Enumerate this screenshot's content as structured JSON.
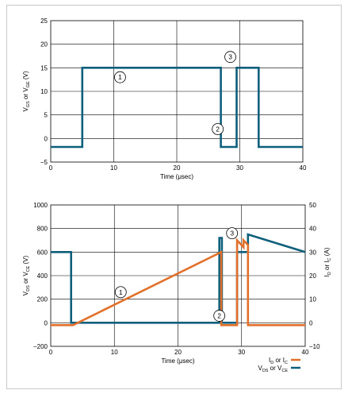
{
  "chart_data": [
    {
      "type": "line",
      "xlabel": "Time (μsec)",
      "ylabel": "V_GS or V_GE (V)",
      "ylabel_main": "V",
      "ylabel_sub1": "GS",
      "ylabel_mid": " or V",
      "ylabel_sub2": "GE",
      "ylabel_end": " (V)",
      "xlim": [
        0,
        40
      ],
      "ylim": [
        -5,
        25
      ],
      "xticks": [
        "0",
        "10",
        "20",
        "30",
        "40"
      ],
      "yticks": [
        "−5",
        "0",
        "5",
        "10",
        "15",
        "20",
        "25"
      ],
      "grid": true,
      "series": [
        {
          "color": "#0e5f7c",
          "x": [
            0,
            3.5,
            3.5,
            5,
            5,
            27,
            27,
            29.5,
            29.5,
            30,
            30,
            33,
            33,
            35,
            35,
            40
          ],
          "y": [
            -1.8,
            -1.8,
            -1.8,
            -1.8,
            15,
            15,
            -1.8,
            -1.8,
            15,
            15,
            15,
            15,
            -1.8,
            -1.8,
            -1.8,
            -1.8
          ]
        }
      ],
      "annotations": [
        {
          "text": "1",
          "x": 11,
          "y": 13
        },
        {
          "text": "2",
          "x": 26.5,
          "y": 2
        },
        {
          "text": "3",
          "x": 28.5,
          "y": 17.3
        }
      ]
    },
    {
      "type": "line",
      "xlabel": "Time (μsec)",
      "ylabel": "V_DS or V_CE (V)",
      "ylabel_main": "V",
      "ylabel_sub1": "DS",
      "ylabel_mid": " or V",
      "ylabel_sub2": "CE",
      "ylabel_end": " (V)",
      "y2label": "I_D or I_C (A)",
      "y2label_main": "I",
      "y2label_sub1": "D",
      "y2label_mid": " or I",
      "y2label_sub2": "C",
      "y2label_end": " (A)",
      "xlim": [
        0,
        40
      ],
      "ylim": [
        -200,
        1000
      ],
      "y2lim": [
        -10,
        50
      ],
      "xticks": [
        "0",
        "10",
        "20",
        "30",
        "40"
      ],
      "yticks": [
        "−200",
        "0",
        "200",
        "400",
        "600",
        "800",
        "1000"
      ],
      "y2ticks": [
        "−10",
        "0",
        "10",
        "20",
        "30",
        "40",
        "50"
      ],
      "grid": true,
      "legend": {
        "position": "bottom-right",
        "current_label_main": "I",
        "current_label_sub1": "D",
        "current_label_mid": " or I",
        "current_label_sub2": "C",
        "voltage_label_main": "V",
        "voltage_label_sub1": "DS",
        "voltage_label_mid": " or V",
        "voltage_label_sub2": "CE"
      },
      "series": [
        {
          "name": "V_DS or V_CE",
          "color": "#0e5f7c",
          "axis": "left",
          "x": [
            0,
            3.2,
            3.2,
            26.5,
            26.5,
            26.9,
            26.9,
            29.3,
            29.3,
            31,
            31,
            40
          ],
          "y": [
            600,
            600,
            0,
            0,
            720,
            720,
            0,
            0,
            600,
            600,
            750,
            600
          ]
        },
        {
          "name": "I_D or I_C",
          "color": "#e2702a",
          "axis": "right",
          "x": [
            0,
            3.5,
            26.8,
            26.8,
            29.3,
            29.3,
            30.3,
            30.3,
            31,
            31,
            40
          ],
          "y": [
            -1,
            -1,
            30,
            -1,
            -1,
            35,
            32,
            35,
            33,
            -1,
            -1
          ]
        }
      ],
      "annotations": [
        {
          "text": "1",
          "x": 11,
          "y": 260
        },
        {
          "text": "2",
          "x": 26.5,
          "y": 60
        },
        {
          "text": "3",
          "x": 28.5,
          "y": 760
        }
      ]
    }
  ]
}
